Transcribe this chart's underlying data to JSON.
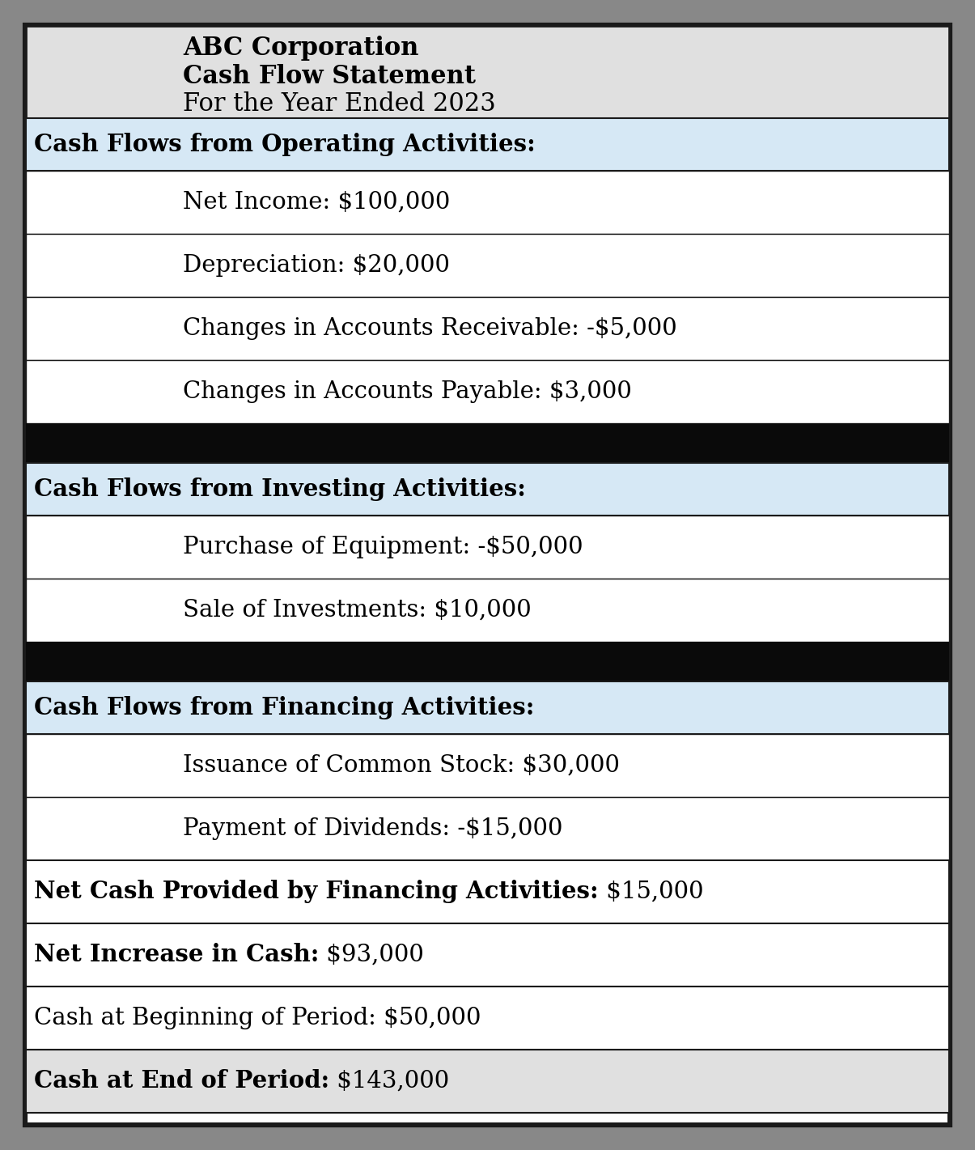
{
  "title_lines": [
    {
      "text": "ABC Corporation",
      "bold": true
    },
    {
      "text": "Cash Flow Statement",
      "bold": true
    },
    {
      "text": "For the Year Ended 2023",
      "bold": false
    }
  ],
  "title_bg": "#e0e0e0",
  "header_bg": "#d6e8f5",
  "white_bg": "#ffffff",
  "black_bg": "#0a0a0a",
  "outer_bg": "#888888",
  "border_color": "#1a1a1a",
  "sections": [
    {
      "header": "Cash Flows from Operating Activities:",
      "items": [
        "Net Income: $100,000",
        "Depreciation: $20,000",
        "Changes in Accounts Receivable: -$5,000",
        "Changes in Accounts Payable: $3,000"
      ],
      "summary": null
    },
    {
      "header": "Cash Flows from Investing Activities:",
      "items": [
        "Purchase of Equipment: -$50,000",
        "Sale of Investments: $10,000"
      ],
      "summary": null
    },
    {
      "header": "Cash Flows from Financing Activities:",
      "items": [
        "Issuance of Common Stock: $30,000",
        "Payment of Dividends: -$15,000"
      ],
      "summary": {
        "bold_part": "Net Cash Provided by Financing Activities:",
        "value_part": " $15,000"
      }
    }
  ],
  "footer_rows": [
    {
      "bold_part": "Net Increase in Cash:",
      "value_part": " $93,000",
      "bg": "#ffffff"
    },
    {
      "bold_part": null,
      "value_part": "Cash at Beginning of Period: $50,000",
      "bg": "#ffffff"
    },
    {
      "bold_part": "Cash at End of Period:",
      "value_part": " $143,000",
      "bg": "#e0e0e0"
    }
  ],
  "item_fontsize": 21,
  "header_fontsize": 21,
  "title_fontsize": 22,
  "fig_width": 12.05,
  "fig_height": 14.21,
  "dpi": 100
}
